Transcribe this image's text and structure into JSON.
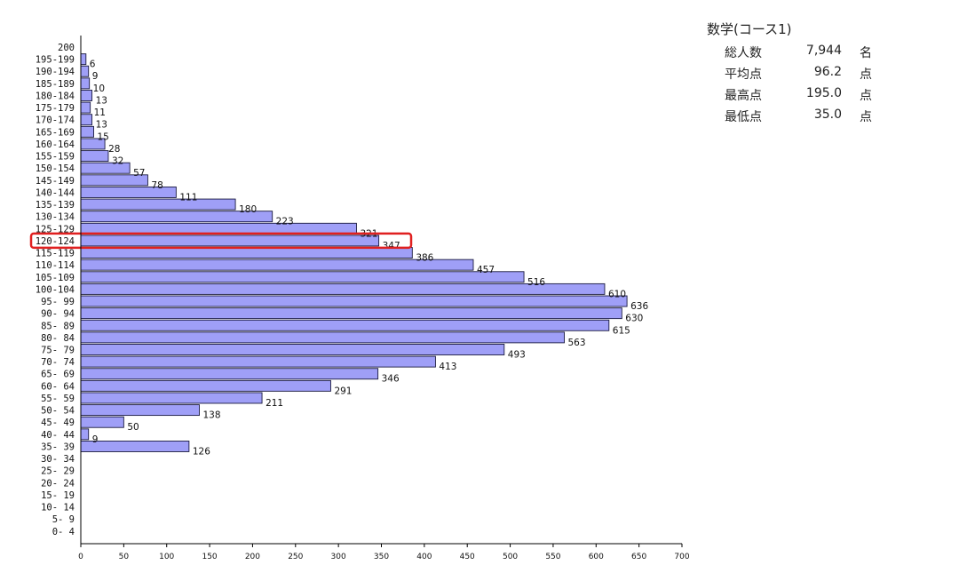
{
  "chart_data": {
    "type": "bar",
    "orientation": "horizontal",
    "title": "",
    "xlabel": "",
    "ylabel": "",
    "xlim": [
      0,
      700
    ],
    "x_ticks": [
      0,
      50,
      100,
      150,
      200,
      250,
      300,
      350,
      400,
      450,
      500,
      550,
      600,
      650,
      700
    ],
    "grid": false,
    "bar_color": "#9f9ff7",
    "highlight_color": "#e02020",
    "highlight_category": "120-124",
    "categories": [
      "200",
      "195-199",
      "190-194",
      "185-189",
      "180-184",
      "175-179",
      "170-174",
      "165-169",
      "160-164",
      "155-159",
      "150-154",
      "145-149",
      "140-144",
      "135-139",
      "130-134",
      "125-129",
      "120-124",
      "115-119",
      "110-114",
      "105-109",
      "100-104",
      "95- 99",
      "90- 94",
      "85- 89",
      "80- 84",
      "75- 79",
      "70- 74",
      "65- 69",
      "60- 64",
      "55- 59",
      "50- 54",
      "45- 49",
      "40- 44",
      "35- 39",
      "30- 34",
      "25- 29",
      "20- 24",
      "15- 19",
      "10- 14",
      "5- 9",
      "0- 4"
    ],
    "values": [
      null,
      6,
      9,
      10,
      13,
      11,
      13,
      15,
      28,
      32,
      57,
      78,
      111,
      180,
      223,
      321,
      347,
      386,
      457,
      516,
      610,
      636,
      630,
      615,
      563,
      493,
      413,
      346,
      291,
      211,
      138,
      50,
      9,
      126,
      null,
      null,
      null,
      null,
      null,
      null,
      null
    ]
  },
  "stats": {
    "title": "数学(コース1)",
    "rows": [
      {
        "label": "総人数",
        "value": "7,944",
        "unit": "名"
      },
      {
        "label": "平均点",
        "value": "96.2",
        "unit": "点"
      },
      {
        "label": "最高点",
        "value": "195.0",
        "unit": "点"
      },
      {
        "label": "最低点",
        "value": "35.0",
        "unit": "点"
      }
    ]
  }
}
